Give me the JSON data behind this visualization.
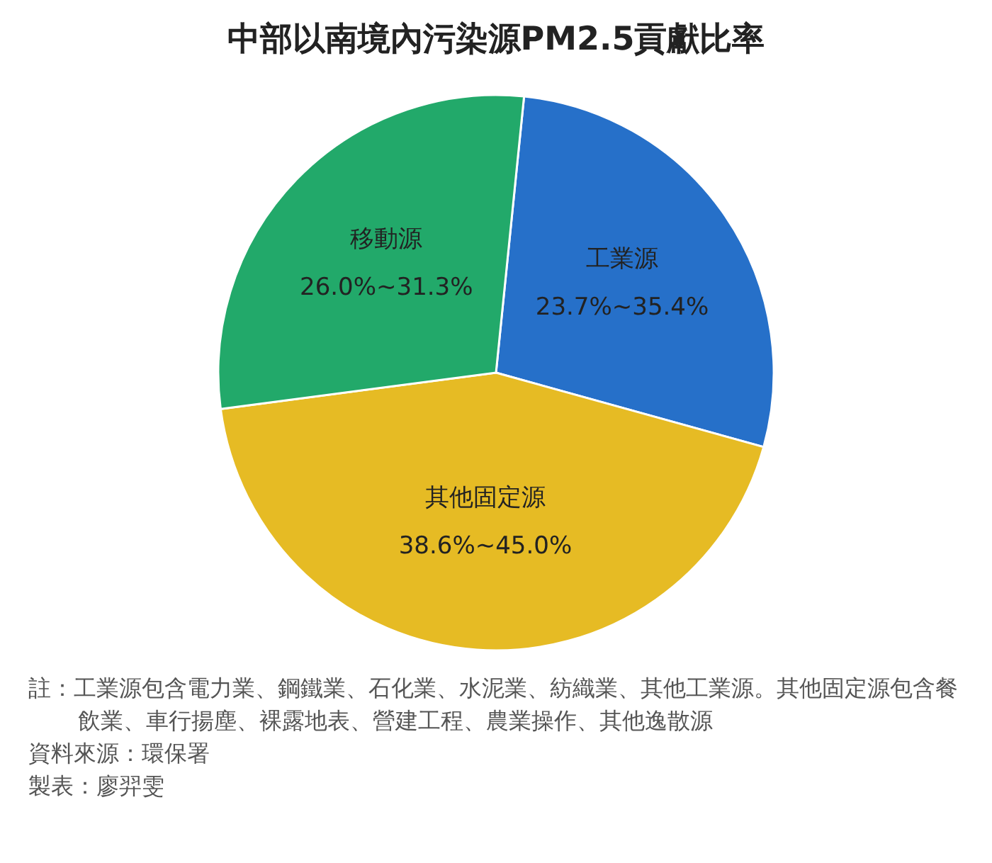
{
  "chart_data": {
    "type": "pie",
    "title": "中部以南境內污染源PM2.5貢獻比率",
    "categories": [
      "工業源",
      "其他固定源",
      "移動源"
    ],
    "values": [
      27.7,
      43.6,
      28.7
    ],
    "colors": [
      "#2670c9",
      "#e6bb24",
      "#22a96a"
    ],
    "annotations": [
      {
        "text": "23.7%~35.4%",
        "x": "工業源"
      },
      {
        "text": "38.6%~45.0%",
        "x": "其他固定源"
      },
      {
        "text": "26.0%~31.3%",
        "x": "移動源"
      },
      "註：工業源包含電力業、鋼鐵業、石化業、水泥業、紡織業、其他工業源。其他固定源包含餐飲業、車行揚塵、裸露地表、營建工程、農業操作、其他逸散源",
      "資料來源：環保署",
      "製表：廖羿雯"
    ]
  }
}
